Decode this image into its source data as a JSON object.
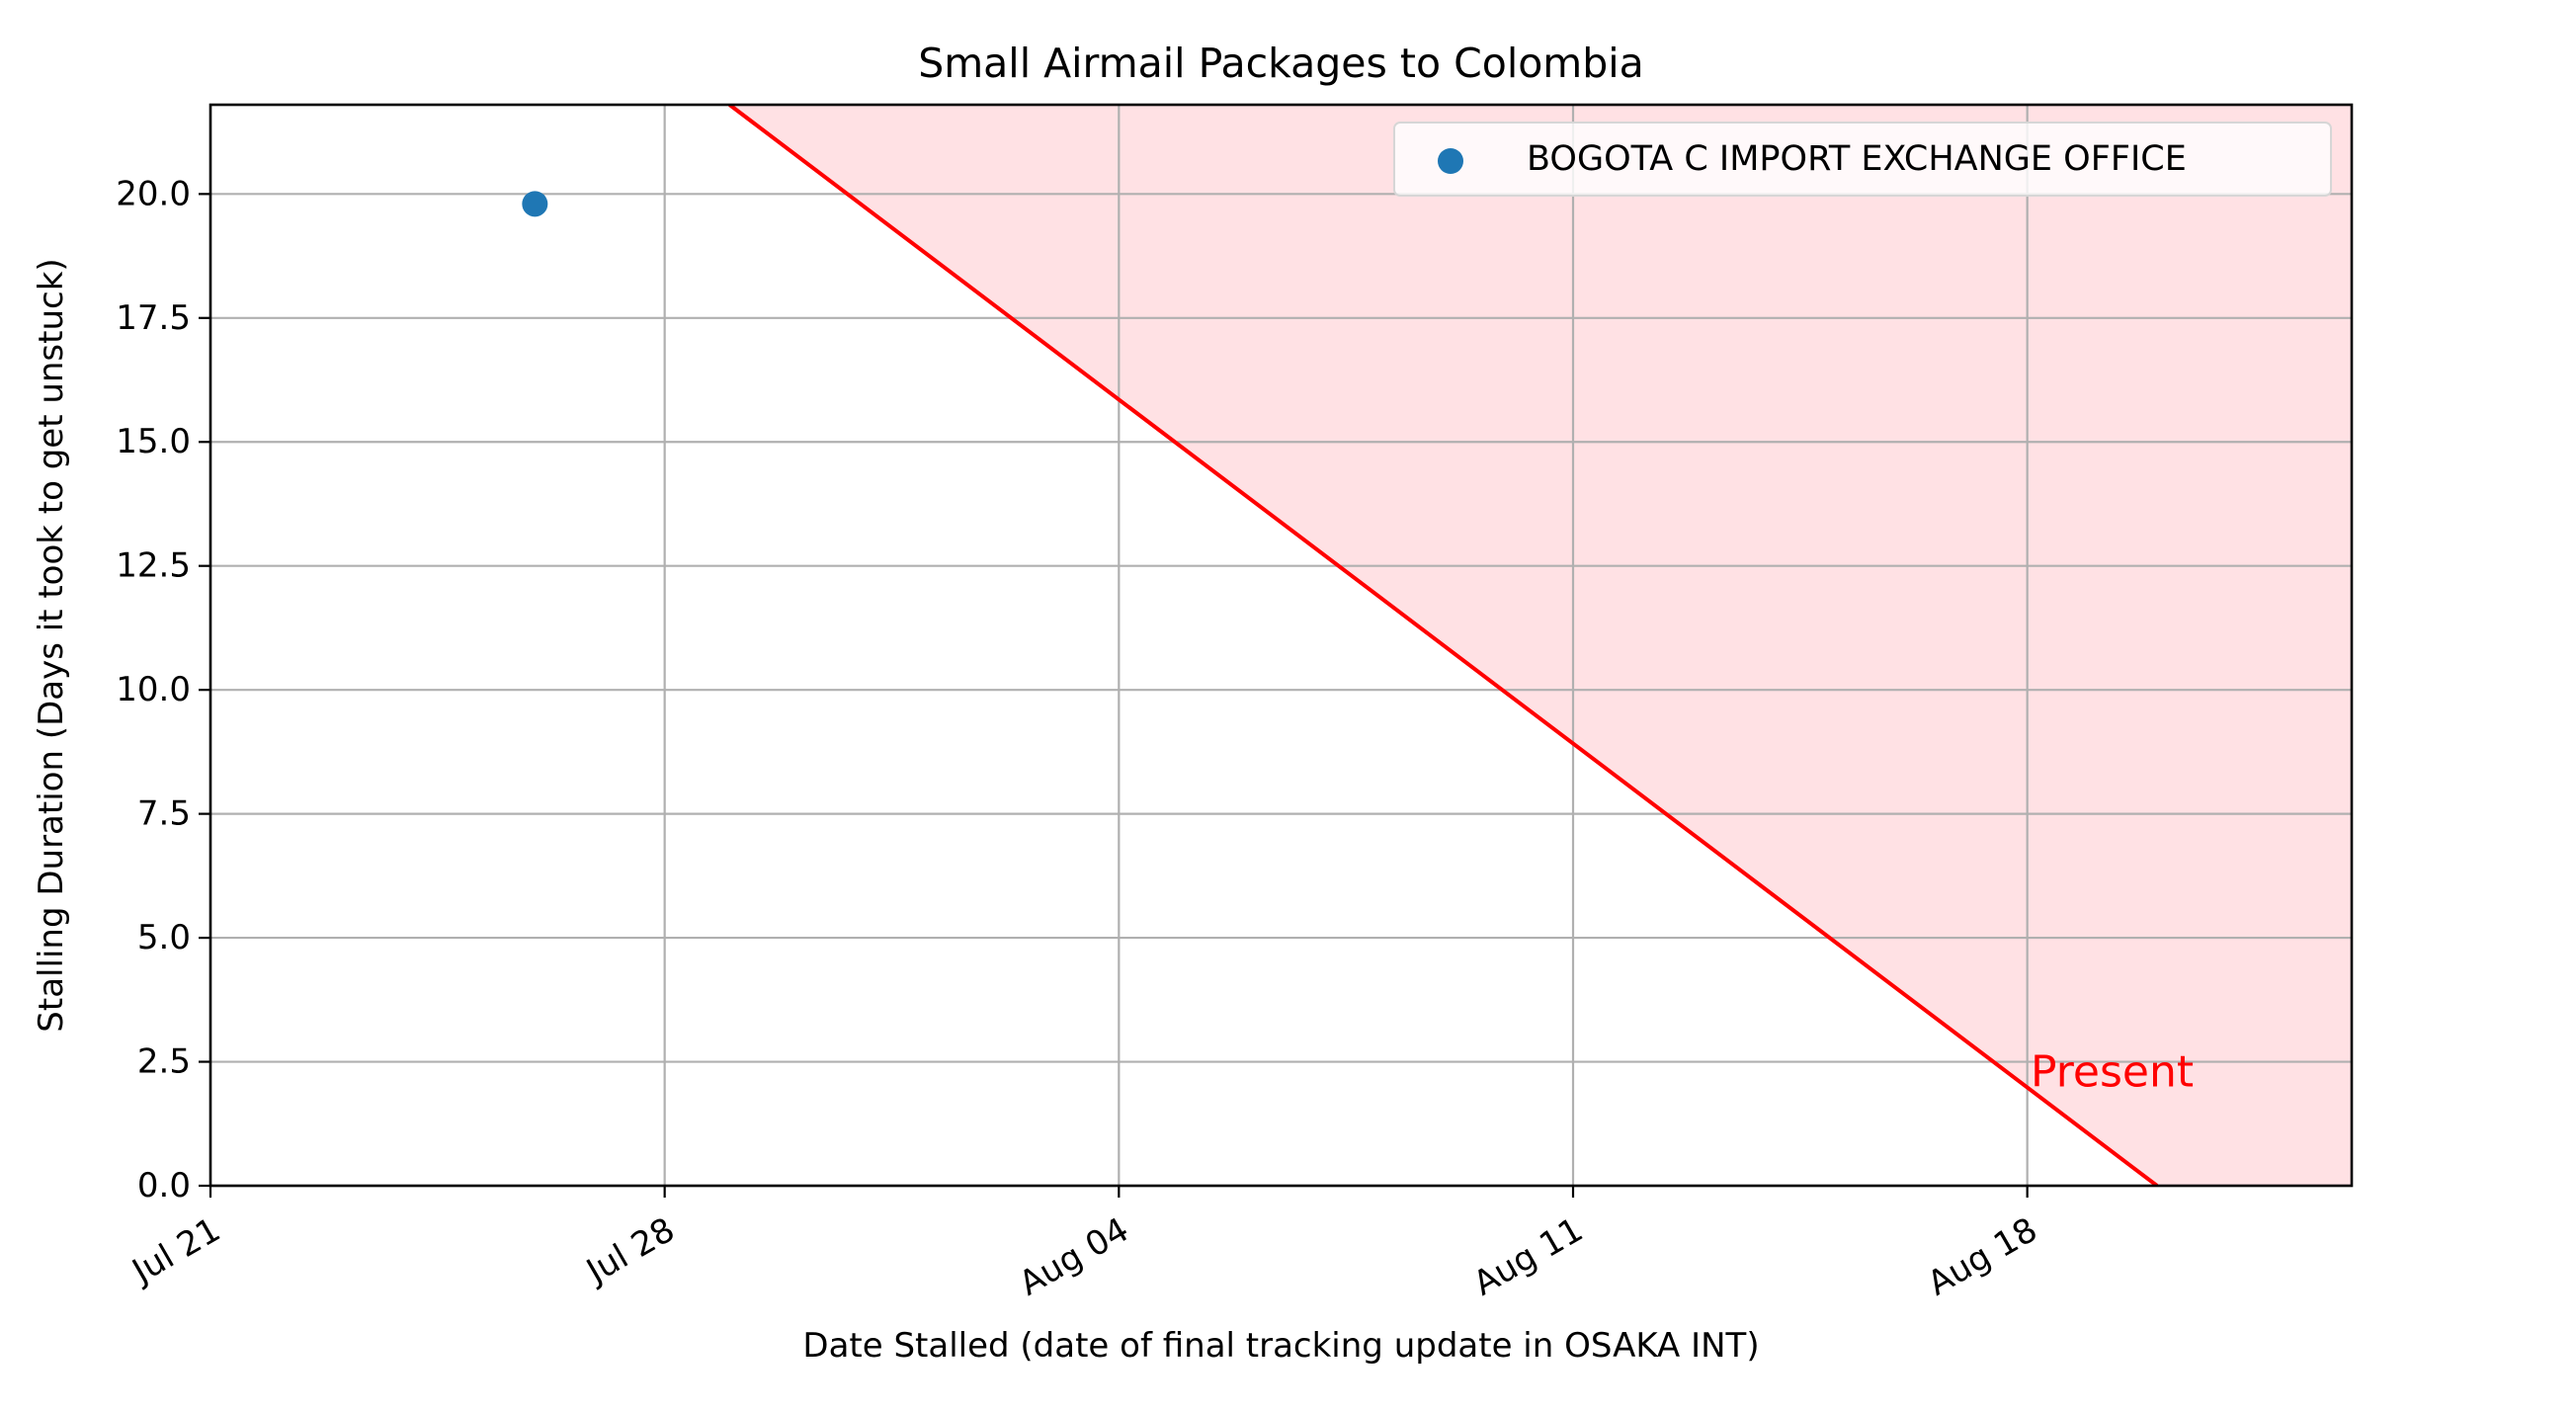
{
  "chart_data": {
    "type": "scatter",
    "title": "Small Airmail Packages to Colombia",
    "xlabel": "Date Stalled (date of final tracking update in OSAKA INT)",
    "ylabel": "Stalling Duration (Days it took to get unstuck)",
    "x_axis_type": "date",
    "xlim": [
      "2024-07-21",
      "2024-08-23"
    ],
    "ylim": [
      0,
      21.8
    ],
    "x_ticks": [
      {
        "value": "2024-07-21",
        "label": "Jul 21"
      },
      {
        "value": "2024-07-28",
        "label": "Jul 28"
      },
      {
        "value": "2024-08-04",
        "label": "Aug 04"
      },
      {
        "value": "2024-08-11",
        "label": "Aug 11"
      },
      {
        "value": "2024-08-18",
        "label": "Aug 18"
      }
    ],
    "y_ticks": [
      {
        "value": 0.0,
        "label": "0.0"
      },
      {
        "value": 2.5,
        "label": "2.5"
      },
      {
        "value": 5.0,
        "label": "5.0"
      },
      {
        "value": 7.5,
        "label": "7.5"
      },
      {
        "value": 10.0,
        "label": "10.0"
      },
      {
        "value": 12.5,
        "label": "12.5"
      },
      {
        "value": 15.0,
        "label": "15.0"
      },
      {
        "value": 17.5,
        "label": "17.5"
      },
      {
        "value": 20.0,
        "label": "20.0"
      }
    ],
    "grid": true,
    "legend_position": "upper-right",
    "series": [
      {
        "name": "BOGOTA C IMPORT EXCHANGE OFFICE",
        "color": "#1f77b4",
        "points": [
          {
            "x": "2024-07-26",
            "y": 19.8
          }
        ]
      }
    ],
    "present_line": {
      "label": "Present",
      "color": "#ff0000",
      "fill_color": "#ffe1e4",
      "present_date": "2024-08-20",
      "points": [
        {
          "x": "2024-07-29",
          "y": 21.8
        },
        {
          "x": "2024-08-20",
          "y": 0
        }
      ]
    }
  }
}
